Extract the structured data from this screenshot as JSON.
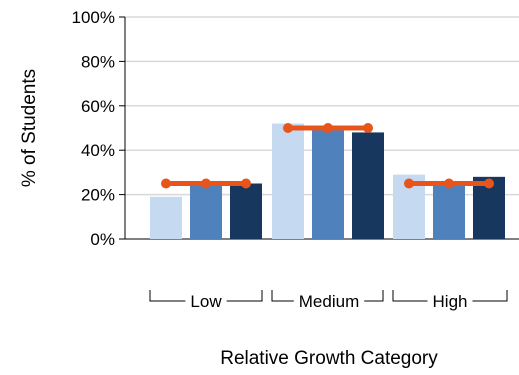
{
  "chart_data": {
    "type": "bar",
    "categories": [
      "Low",
      "Medium",
      "High"
    ],
    "series": [
      {
        "values": [
          19,
          52,
          29
        ],
        "color": "#c5d9f1"
      },
      {
        "values": [
          26,
          50,
          26
        ],
        "color": "#4f81bd"
      },
      {
        "values": [
          25,
          48,
          28
        ],
        "color": "#17375e"
      }
    ],
    "reference_line": {
      "values": [
        25,
        50,
        25
      ],
      "color": "#e8541a"
    },
    "y_ticks": [
      "0%",
      "20%",
      "40%",
      "60%",
      "80%",
      "100%"
    ],
    "ylim": [
      0,
      100
    ],
    "xlabel": "Relative Growth Category",
    "ylabel": "% of Students",
    "grid": true,
    "grid_color": "#d9d9d9"
  }
}
